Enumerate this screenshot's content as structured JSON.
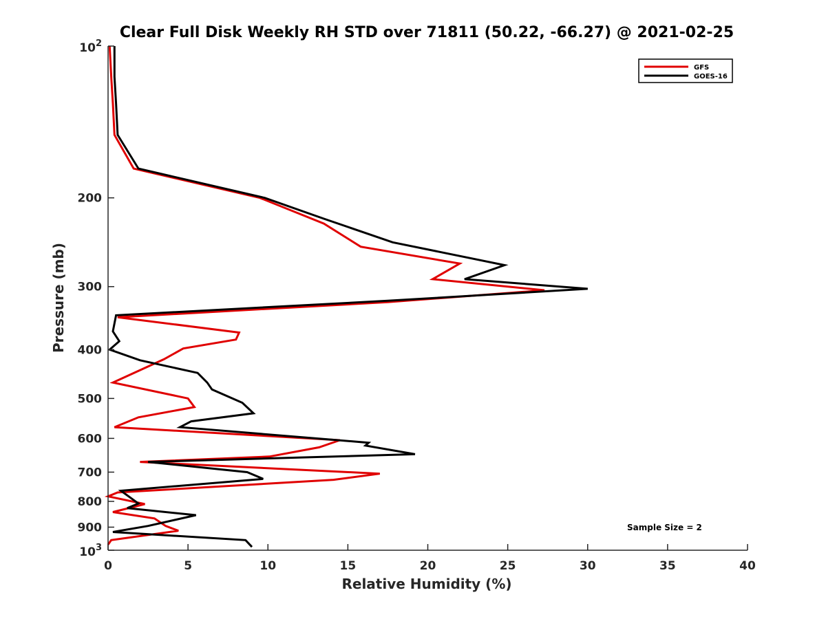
{
  "chart_data": {
    "type": "line",
    "title": "Clear Full Disk Weekly RH STD over 71811 (50.22, -66.27) @ 2021-02-25",
    "xlabel": "Relative Humidity (%)",
    "ylabel": "Pressure (mb)",
    "xlim": [
      0,
      40
    ],
    "ylim": [
      100,
      1000
    ],
    "y_scale": "log",
    "y_reversed": true,
    "grid": false,
    "legend_position": "top-right",
    "x_ticks": [
      0,
      5,
      10,
      15,
      20,
      25,
      30,
      35,
      40
    ],
    "x_tick_labels": [
      "0",
      "5",
      "10",
      "15",
      "20",
      "25",
      "30",
      "35",
      "40"
    ],
    "y_ticks": [
      200,
      300,
      400,
      500,
      600,
      700,
      800,
      900
    ],
    "y_tick_labels": [
      "200",
      "300",
      "400",
      "500",
      "600",
      "700",
      "800",
      "900"
    ],
    "y_end_labels": [
      {
        "value": 100,
        "base": "10",
        "exp": "2"
      },
      {
        "value": 1000,
        "base": "10",
        "exp": "3"
      }
    ],
    "annotation": "Sample Size = 2",
    "series": [
      {
        "name": "GFS",
        "color": "#e00000",
        "points": [
          [
            0.1,
            100
          ],
          [
            0.2,
            115
          ],
          [
            0.3,
            130
          ],
          [
            0.4,
            150
          ],
          [
            1.6,
            175
          ],
          [
            9.5,
            200
          ],
          [
            13.5,
            225
          ],
          [
            15.8,
            250
          ],
          [
            22.0,
            270
          ],
          [
            20.3,
            290
          ],
          [
            27.3,
            305
          ],
          [
            17.5,
            322
          ],
          [
            0.6,
            345
          ],
          [
            8.2,
            370
          ],
          [
            8.0,
            382
          ],
          [
            4.7,
            398
          ],
          [
            3.5,
            418
          ],
          [
            0.3,
            465
          ],
          [
            5.0,
            500
          ],
          [
            5.4,
            520
          ],
          [
            1.9,
            545
          ],
          [
            0.4,
            570
          ],
          [
            14.5,
            605
          ],
          [
            13.2,
            625
          ],
          [
            10.1,
            652
          ],
          [
            2.0,
            668
          ],
          [
            17.0,
            705
          ],
          [
            14.1,
            725
          ],
          [
            0.6,
            768
          ],
          [
            0.0,
            782
          ],
          [
            2.3,
            810
          ],
          [
            0.3,
            840
          ],
          [
            2.9,
            865
          ],
          [
            3.6,
            895
          ],
          [
            4.4,
            915
          ],
          [
            0.2,
            955
          ],
          [
            0.0,
            975
          ]
        ]
      },
      {
        "name": "GOES-16",
        "color": "#000000",
        "points": [
          [
            0.4,
            100
          ],
          [
            0.4,
            115
          ],
          [
            0.5,
            130
          ],
          [
            0.6,
            150
          ],
          [
            1.9,
            175
          ],
          [
            9.8,
            200
          ],
          [
            13.5,
            220
          ],
          [
            17.8,
            245
          ],
          [
            24.8,
            272
          ],
          [
            22.3,
            290
          ],
          [
            30.0,
            303
          ],
          [
            17.5,
            320
          ],
          [
            0.5,
            342
          ],
          [
            0.3,
            368
          ],
          [
            0.7,
            385
          ],
          [
            0.1,
            400
          ],
          [
            2.0,
            420
          ],
          [
            5.6,
            445
          ],
          [
            6.2,
            465
          ],
          [
            6.5,
            480
          ],
          [
            8.4,
            510
          ],
          [
            9.1,
            535
          ],
          [
            5.2,
            555
          ],
          [
            4.5,
            570
          ],
          [
            16.3,
            612
          ],
          [
            16.1,
            620
          ],
          [
            19.2,
            645
          ],
          [
            2.5,
            668
          ],
          [
            8.7,
            700
          ],
          [
            9.7,
            722
          ],
          [
            0.8,
            762
          ],
          [
            1.9,
            808
          ],
          [
            1.2,
            825
          ],
          [
            5.5,
            852
          ],
          [
            2.5,
            895
          ],
          [
            0.3,
            920
          ],
          [
            8.6,
            955
          ],
          [
            9.0,
            985
          ]
        ]
      }
    ]
  }
}
